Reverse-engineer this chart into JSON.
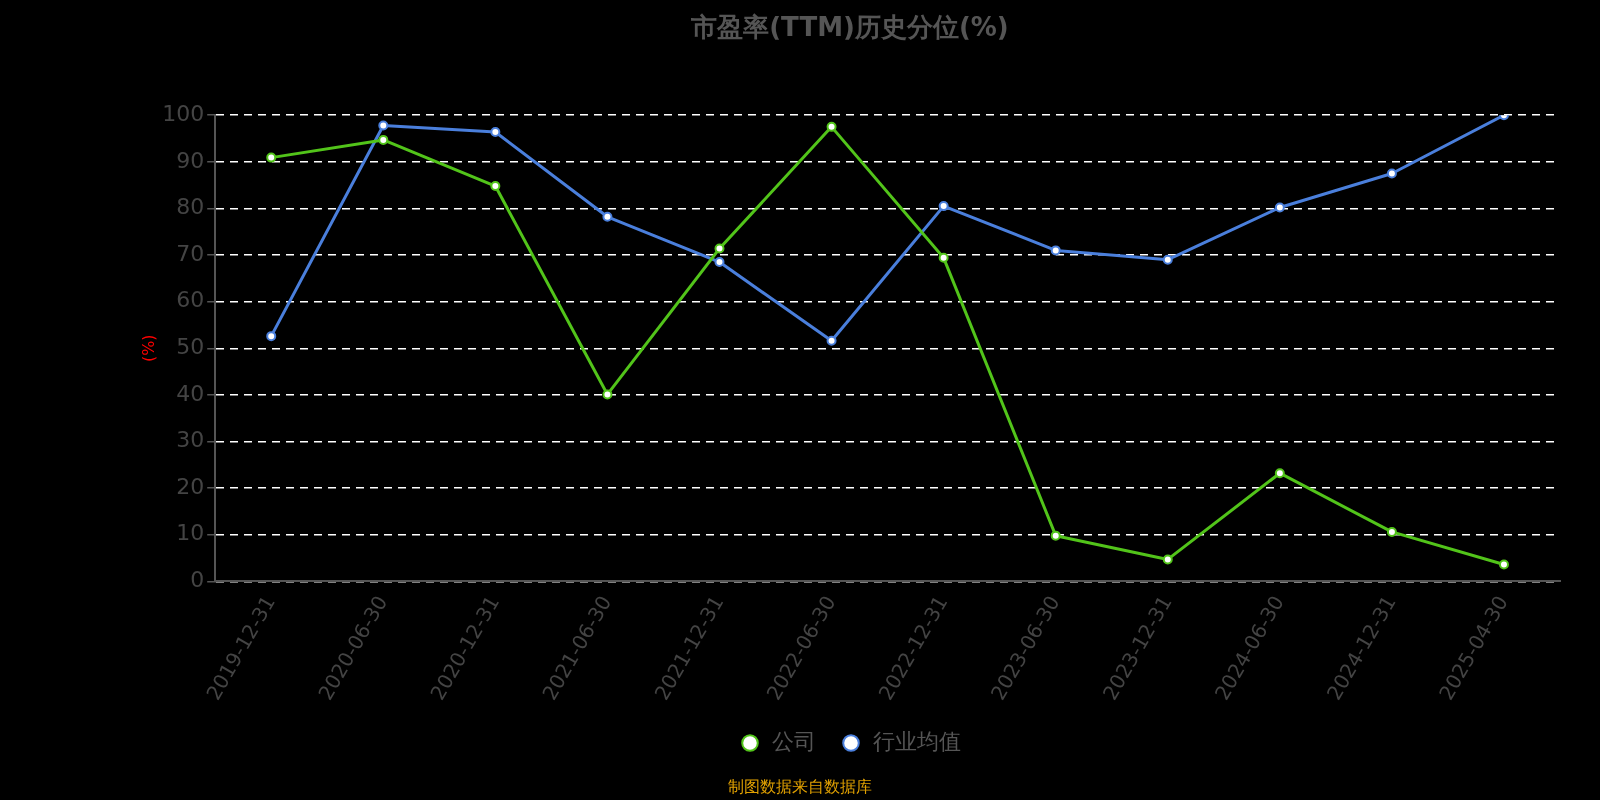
{
  "chart_data": {
    "type": "line",
    "title": "市盈率(TTM)历史分位(%)",
    "ylabel": "(%)",
    "categories": [
      "2019-12-31",
      "2020-06-30",
      "2020-12-31",
      "2021-06-30",
      "2021-12-31",
      "2022-06-30",
      "2022-12-31",
      "2023-06-30",
      "2023-12-31",
      "2024-06-30",
      "2024-12-31",
      "2025-04-30"
    ],
    "series": [
      {
        "name": "公司",
        "color": "#52c41a",
        "values": [
          90.9,
          94.7,
          84.8,
          40.1,
          71.4,
          97.5,
          69.4,
          9.8,
          4.7,
          23.2,
          10.6,
          3.6
        ]
      },
      {
        "name": "行业均值",
        "color": "#4a7fdc",
        "values": [
          52.6,
          97.8,
          96.4,
          78.2,
          68.5,
          51.6,
          80.5,
          71.0,
          69.0,
          80.2,
          87.5,
          100
        ]
      }
    ],
    "ylim": [
      0,
      100
    ],
    "yticks": [
      0,
      10,
      20,
      30,
      40,
      50,
      60,
      70,
      80,
      90,
      100
    ],
    "grid": "y",
    "legend": "bottom",
    "marker": "circle",
    "line_style": "solid",
    "annotations": [
      "制图数据来自数据库"
    ]
  }
}
